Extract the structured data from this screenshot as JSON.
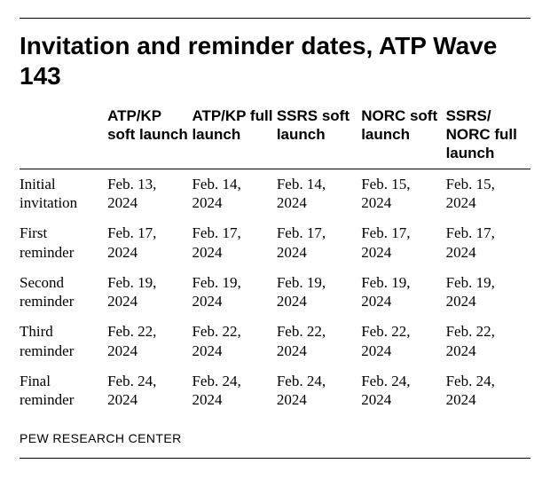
{
  "title": "Invitation and reminder dates, ATP Wave 143",
  "source": "PEW RESEARCH CENTER",
  "table": {
    "type": "table",
    "background_color": "#ffffff",
    "text_color": "#000000",
    "rule_color": "#000000",
    "header_font": {
      "family": "Arial",
      "weight": 700,
      "size_pt": 12.5
    },
    "body_font": {
      "family": "Georgia",
      "weight": 400,
      "size_pt": 12.5
    },
    "title_font": {
      "family": "Arial",
      "weight": 700,
      "size_pt": 21
    },
    "source_font": {
      "family": "Arial",
      "weight": 400,
      "size_pt": 10.5
    },
    "columns": [
      "",
      "ATP/KP soft launch",
      "ATP/KP full launch",
      "SSRS soft launch",
      "NORC soft launch",
      "SSRS/ NORC full launch"
    ],
    "row_labels": [
      "Initial invitation",
      "First reminder",
      "Second reminder",
      "Third reminder",
      "Final reminder"
    ],
    "rows": [
      [
        "Feb. 13, 2024",
        "Feb. 14, 2024",
        "Feb. 14, 2024",
        "Feb. 15, 2024",
        "Feb. 15, 2024"
      ],
      [
        "Feb. 17, 2024",
        "Feb. 17, 2024",
        "Feb. 17, 2024",
        "Feb. 17, 2024",
        "Feb. 17, 2024"
      ],
      [
        "Feb. 19, 2024",
        "Feb. 19, 2024",
        "Feb. 19, 2024",
        "Feb. 19, 2024",
        "Feb. 19, 2024"
      ],
      [
        "Feb. 22, 2024",
        "Feb. 22, 2024",
        "Feb. 22, 2024",
        "Feb. 22, 2024",
        "Feb. 22, 2024"
      ],
      [
        "Feb. 24, 2024",
        "Feb. 24, 2024",
        "Feb. 24, 2024",
        "Feb. 24, 2024",
        "Feb. 24, 2024"
      ]
    ]
  }
}
